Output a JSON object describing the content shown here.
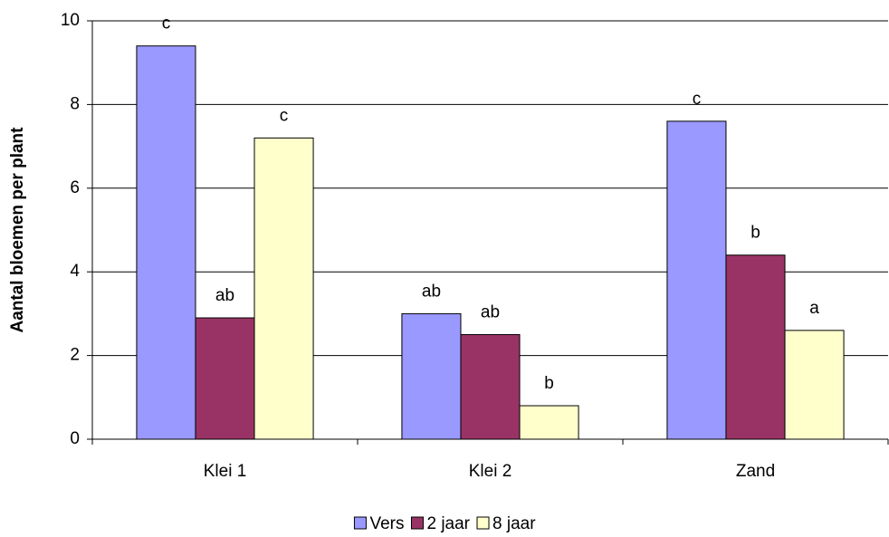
{
  "chart_data": {
    "type": "bar",
    "y_label": "Aantal bloemen per plant",
    "categories": [
      "Klei 1",
      "Klei 2",
      "Zand"
    ],
    "series": [
      {
        "name": "Vers",
        "color": "#9999ff",
        "values": [
          9.4,
          3.0,
          7.6
        ],
        "annotations": [
          "c",
          "ab",
          "c"
        ]
      },
      {
        "name": "2 jaar",
        "color": "#993366",
        "values": [
          2.9,
          2.5,
          4.4
        ],
        "annotations": [
          "ab",
          "ab",
          "b"
        ]
      },
      {
        "name": "8 jaar",
        "color": "#ffffcc",
        "values": [
          7.2,
          0.8,
          2.6
        ],
        "annotations": [
          "c",
          "b",
          "a"
        ]
      }
    ],
    "ylim": [
      0,
      10
    ],
    "yticks": [
      0,
      2,
      4,
      6,
      8,
      10
    ],
    "grid": true,
    "legend": "bottom"
  }
}
